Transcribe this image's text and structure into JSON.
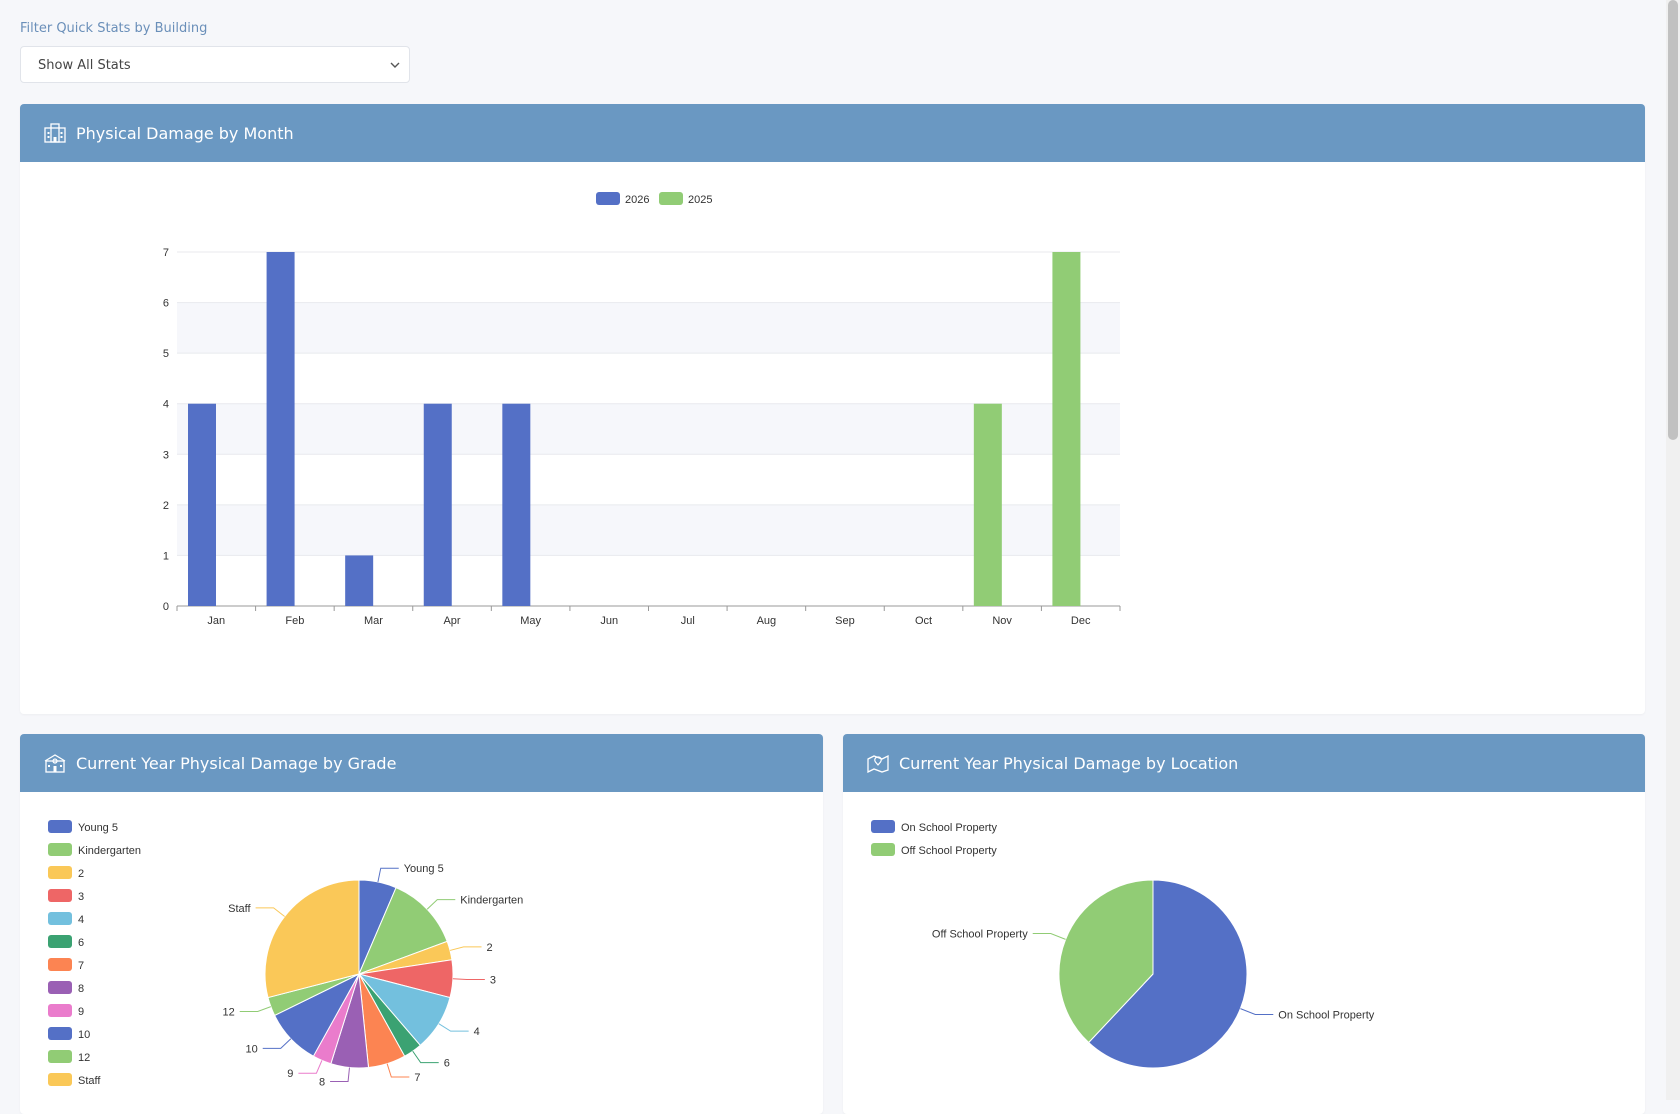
{
  "filter": {
    "label": "Filter Quick Stats by Building",
    "selected": "Show All Stats"
  },
  "cards": {
    "month": {
      "title": "Physical Damage by Month",
      "icon": "building-icon"
    },
    "grade": {
      "title": "Current Year Physical Damage by Grade",
      "icon": "school-icon"
    },
    "location": {
      "title": "Current Year Physical Damage by Location",
      "icon": "map-icon"
    }
  },
  "colors": {
    "header": "#6a98c2",
    "blue": "#5470c6",
    "green": "#91cc75",
    "yellow": "#fac858",
    "red": "#ee6666",
    "cyan": "#73c0de",
    "teal": "#3ba272",
    "orange": "#fc8452",
    "purple": "#9a60b4",
    "pink": "#ea7ccc"
  },
  "chart_data": [
    {
      "type": "bar",
      "categories": [
        "Jan",
        "Feb",
        "Mar",
        "Apr",
        "May",
        "Jun",
        "Jul",
        "Aug",
        "Sep",
        "Oct",
        "Nov",
        "Dec"
      ],
      "series": [
        {
          "name": "2026",
          "values": [
            4,
            7,
            1,
            4,
            4,
            0,
            0,
            0,
            0,
            0,
            0,
            0
          ],
          "color": "#5470c6"
        },
        {
          "name": "2025",
          "values": [
            0,
            0,
            0,
            0,
            0,
            0,
            0,
            0,
            0,
            0,
            4,
            7
          ],
          "color": "#91cc75"
        }
      ],
      "yticks": [
        0,
        1,
        2,
        3,
        4,
        5,
        6,
        7
      ],
      "ylim": [
        0,
        7
      ],
      "legend": "top-center",
      "grid": true
    },
    {
      "type": "pie",
      "labels": [
        "Young 5",
        "Kindergarten",
        "2",
        "3",
        "4",
        "6",
        "7",
        "8",
        "9",
        "10",
        "12",
        "Staff"
      ],
      "values": [
        2,
        4,
        1,
        2,
        3,
        1,
        2,
        2,
        1,
        3,
        1,
        9
      ],
      "colors": [
        "#5470c6",
        "#91cc75",
        "#fac858",
        "#ee6666",
        "#73c0de",
        "#3ba272",
        "#fc8452",
        "#9a60b4",
        "#ea7ccc",
        "#5470c6",
        "#91cc75",
        "#fac858"
      ],
      "legend": "top-left"
    },
    {
      "type": "pie",
      "labels": [
        "On School Property",
        "Off School Property"
      ],
      "values": [
        62,
        38
      ],
      "colors": [
        "#5470c6",
        "#91cc75"
      ],
      "legend": "top-left"
    }
  ]
}
